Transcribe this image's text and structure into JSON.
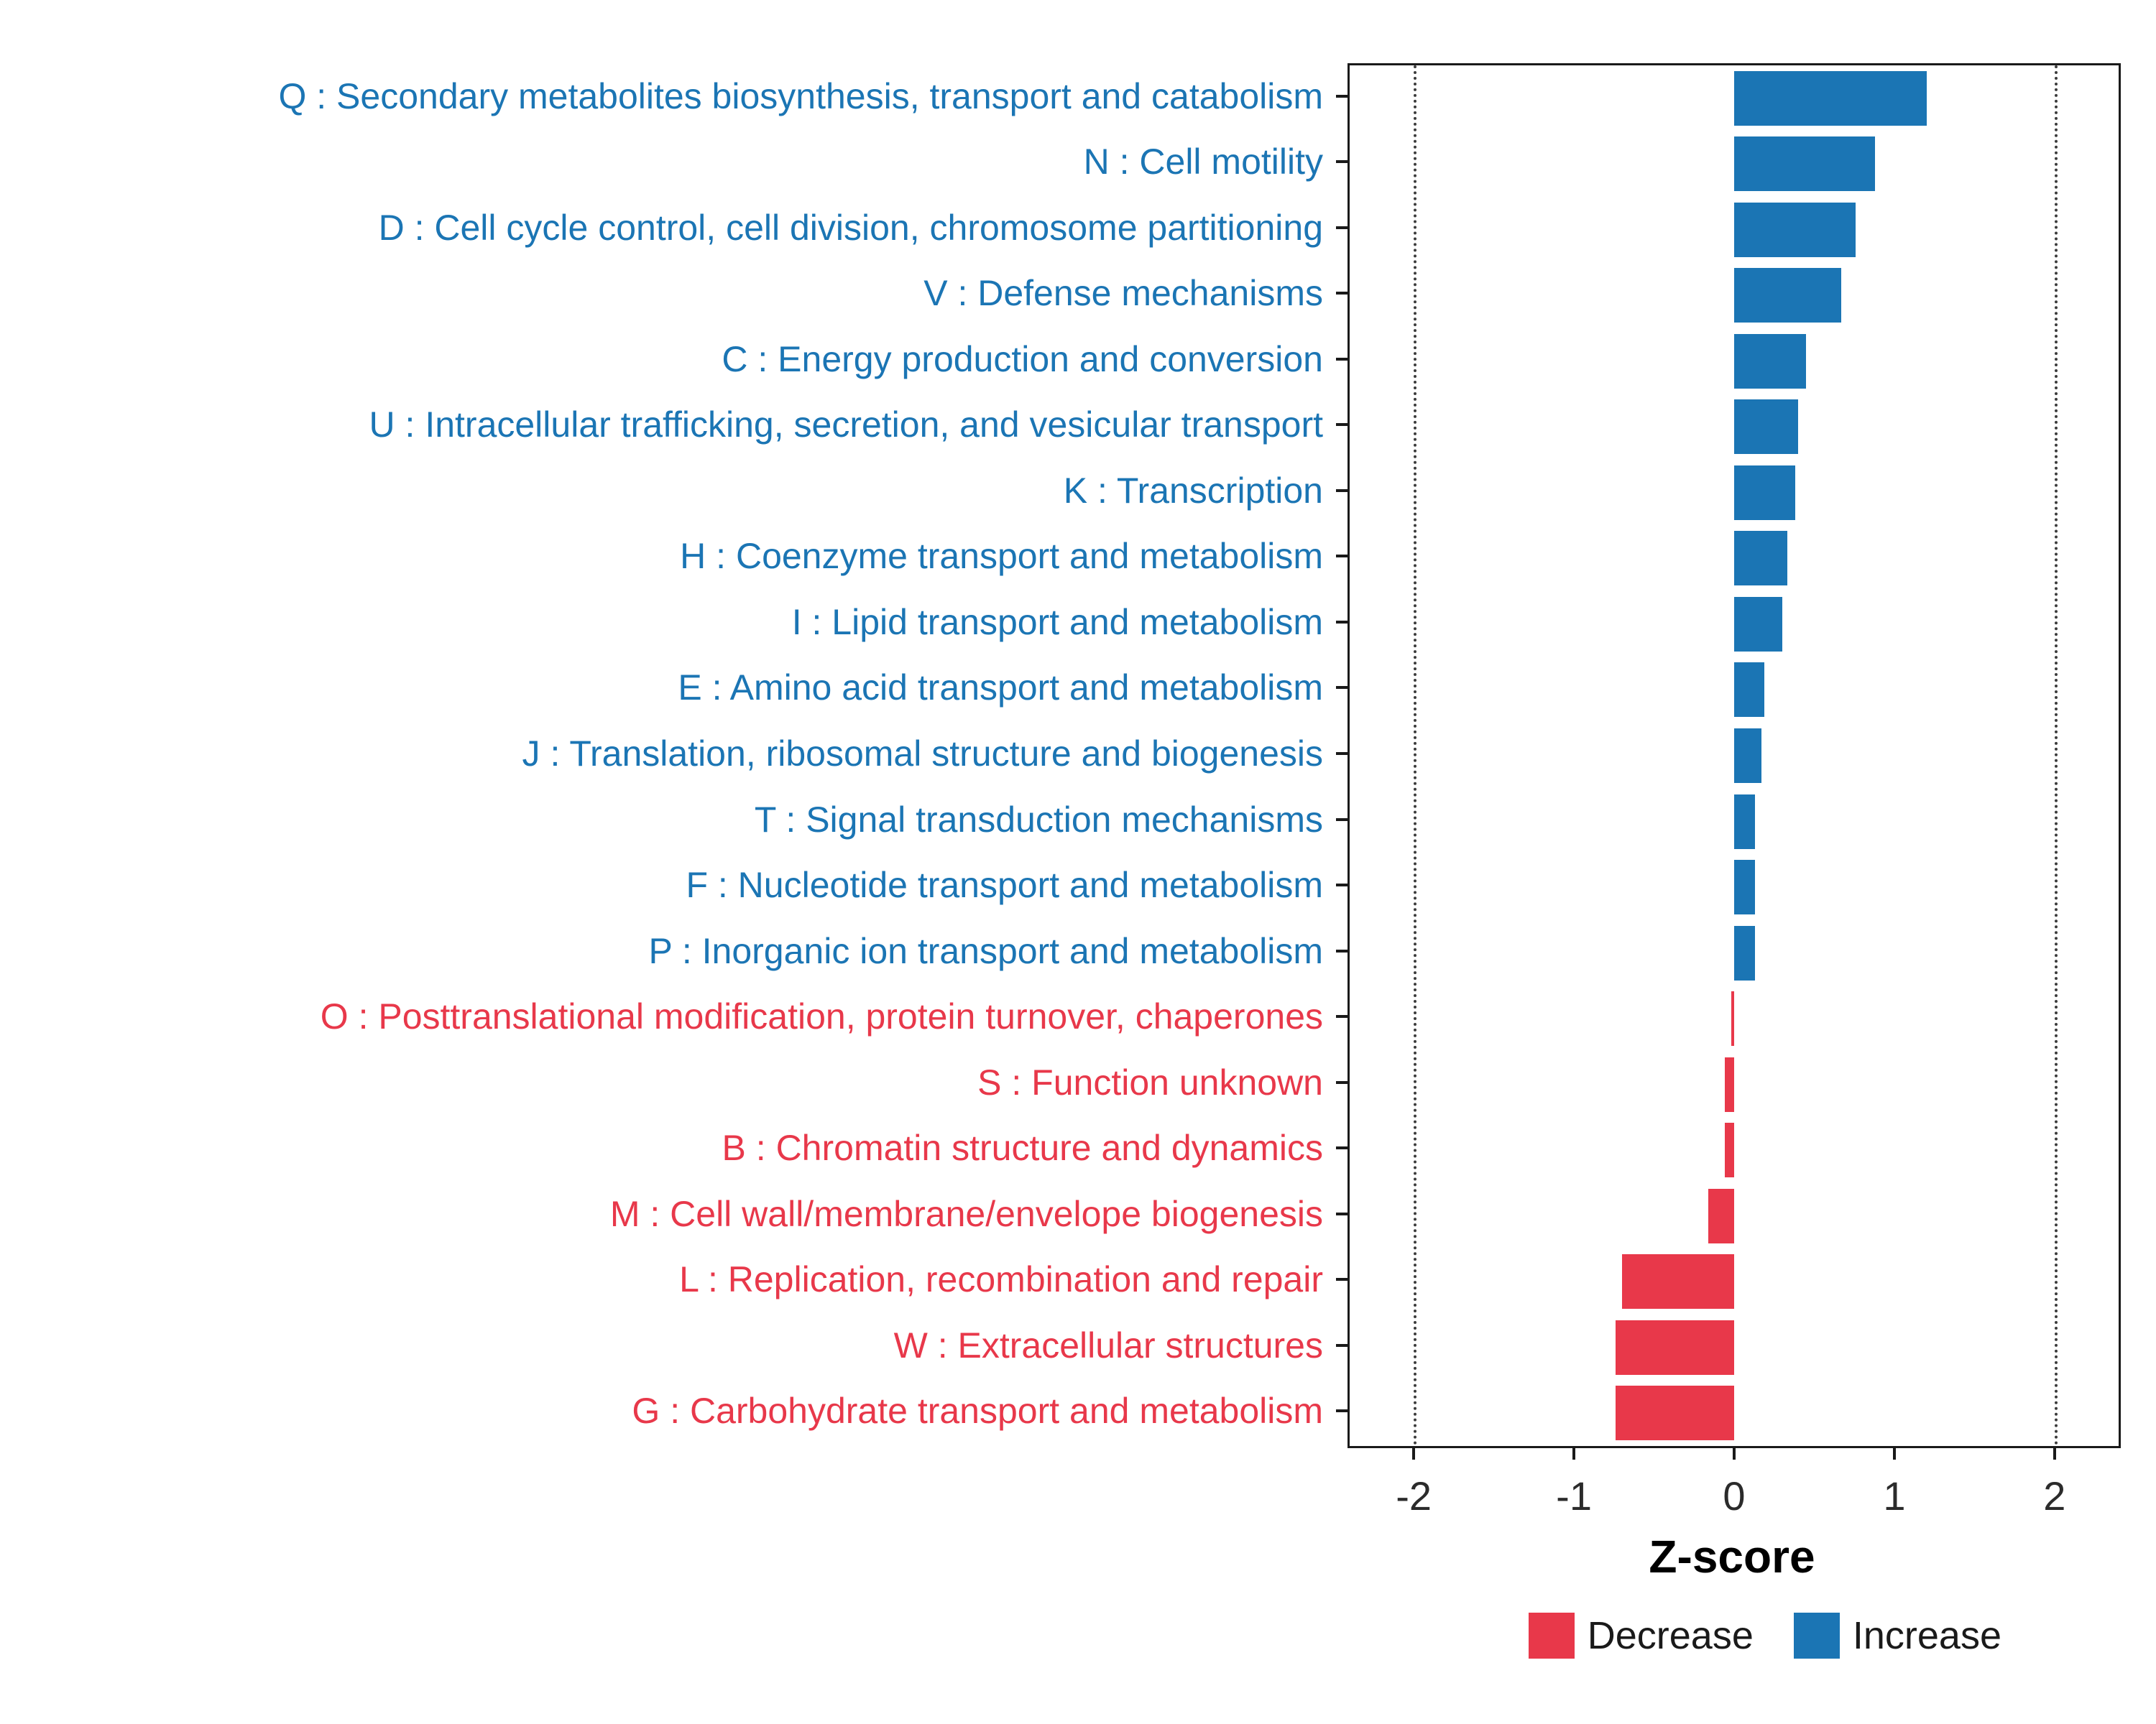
{
  "chart_data": {
    "type": "bar",
    "orientation": "horizontal",
    "title": "",
    "xlabel": "Z-score",
    "xlim": [
      -2.4,
      2.4
    ],
    "x_ticks": [
      -2,
      -1,
      0,
      1,
      2
    ],
    "threshold_lines": [
      -2,
      2
    ],
    "grid": false,
    "legend_position": "bottom-right",
    "colors": {
      "Increase": "#1B75B4",
      "Decrease": "#E8384A"
    },
    "categories": [
      "Q : Secondary metabolites biosynthesis, transport and catabolism",
      "N : Cell motility",
      "D : Cell cycle control, cell division, chromosome partitioning",
      "V : Defense mechanisms",
      "C : Energy production and conversion",
      "U : Intracellular trafficking, secretion, and vesicular transport",
      "K : Transcription",
      "H : Coenzyme transport and metabolism",
      "I : Lipid transport and metabolism",
      "E : Amino acid transport and metabolism",
      "J : Translation, ribosomal structure and biogenesis",
      "T : Signal transduction mechanisms",
      "F : Nucleotide transport and metabolism",
      "P : Inorganic ion transport and metabolism",
      "O : Posttranslational modification, protein turnover, chaperones",
      "S : Function unknown",
      "B : Chromatin structure and dynamics",
      "M : Cell wall/membrane/envelope biogenesis",
      "L : Replication, recombination and repair",
      "W : Extracellular structures",
      "G : Carbohydrate transport and metabolism"
    ],
    "values": [
      1.2,
      0.88,
      0.76,
      0.67,
      0.45,
      0.4,
      0.38,
      0.33,
      0.3,
      0.19,
      0.17,
      0.13,
      0.13,
      0.13,
      -0.02,
      -0.06,
      -0.06,
      -0.16,
      -0.7,
      -0.74,
      -0.74
    ],
    "groups": [
      "Increase",
      "Increase",
      "Increase",
      "Increase",
      "Increase",
      "Increase",
      "Increase",
      "Increase",
      "Increase",
      "Increase",
      "Increase",
      "Increase",
      "Increase",
      "Increase",
      "Decrease",
      "Decrease",
      "Decrease",
      "Decrease",
      "Decrease",
      "Decrease",
      "Decrease"
    ],
    "legend": [
      {
        "label": "Decrease",
        "color": "#E8384A"
      },
      {
        "label": "Increase",
        "color": "#1B75B4"
      }
    ]
  }
}
